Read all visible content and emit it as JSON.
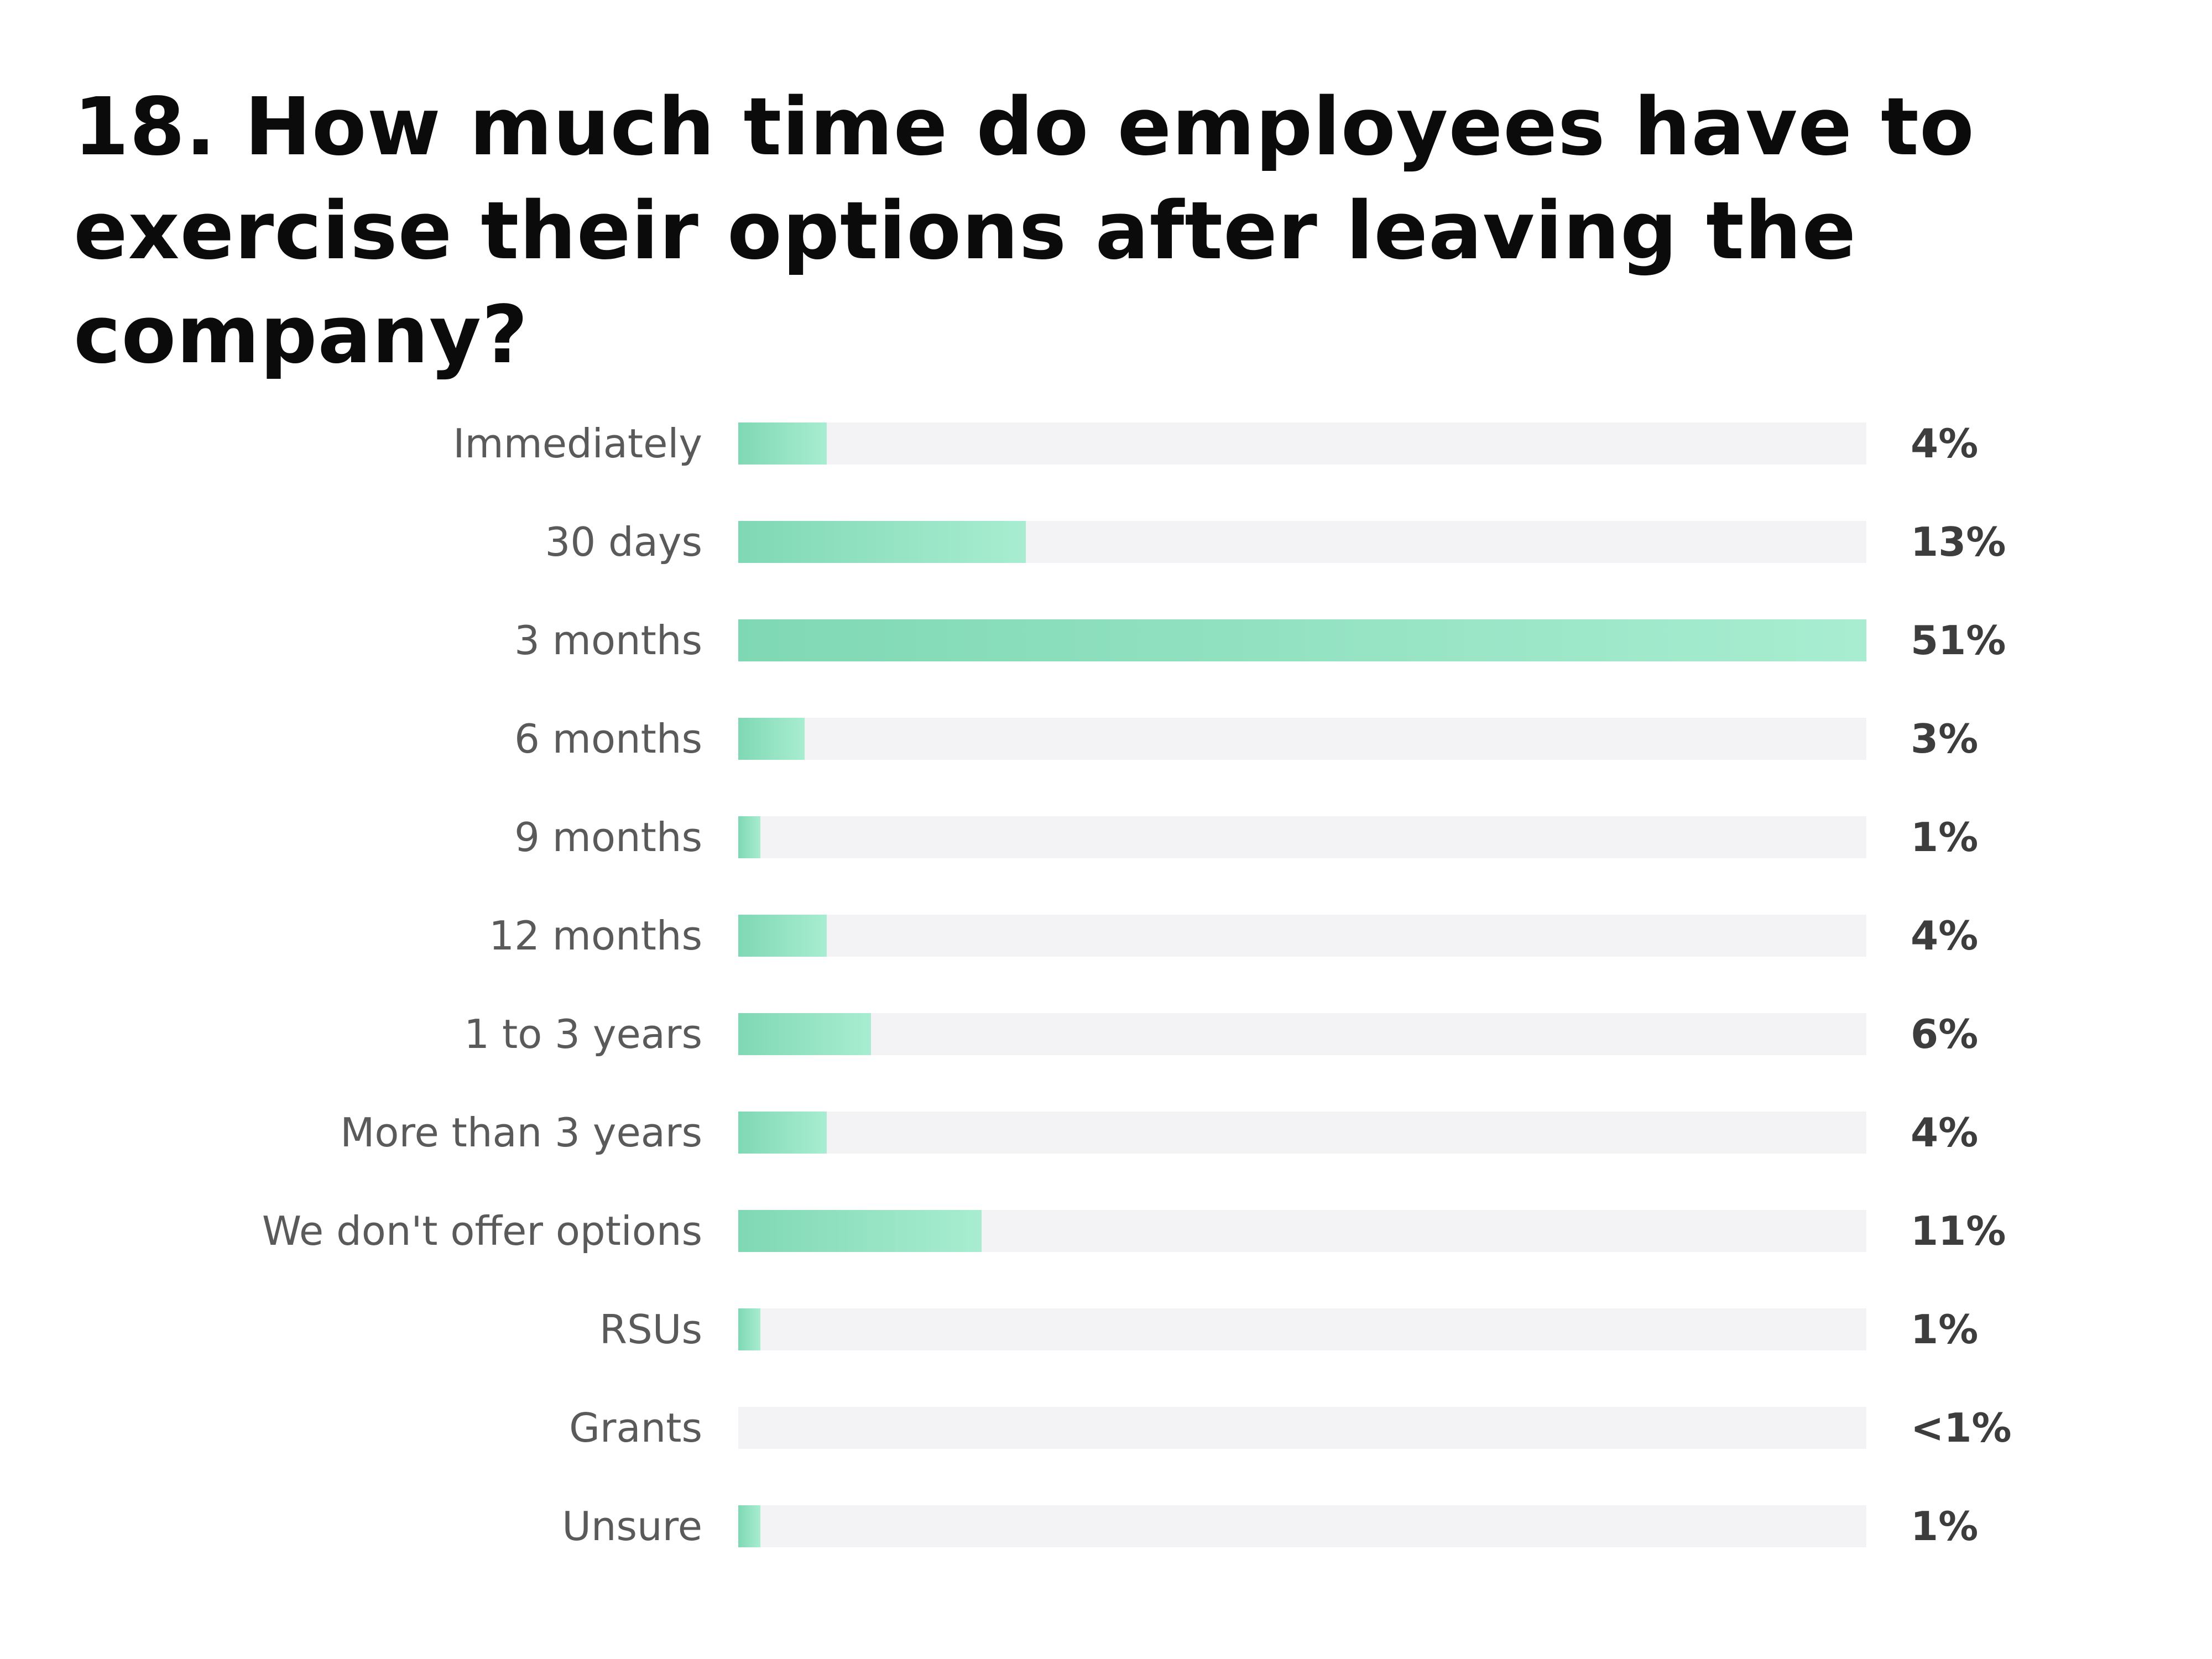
{
  "title": "18. How much time do employees have to exercise their options after leaving the company?",
  "colors": {
    "bar_start": "#7fd8b4",
    "bar_end": "#a8edd1",
    "track": "#f3f3f5",
    "label": "#5a5a5a",
    "value": "#3d3d3d"
  },
  "chart_data": {
    "type": "bar",
    "orientation": "horizontal",
    "title": "18. How much time do employees have to exercise their options after leaving the company?",
    "xlabel": "",
    "ylabel": "",
    "xlim": [
      0,
      51
    ],
    "grid": false,
    "legend": "none",
    "categories": [
      "Immediately",
      "30 days",
      "3 months",
      "6 months",
      "9 months",
      "12 months",
      "1 to 3 years",
      "More than 3 years",
      "We don't offer options",
      "RSUs",
      "Grants",
      "Unsure"
    ],
    "values": [
      4,
      13,
      51,
      3,
      1,
      4,
      6,
      4,
      11,
      1,
      0,
      1
    ],
    "value_labels": [
      "4%",
      "13%",
      "51%",
      "3%",
      "1%",
      "4%",
      "6%",
      "4%",
      "11%",
      "1%",
      "<1%",
      "1%"
    ]
  }
}
